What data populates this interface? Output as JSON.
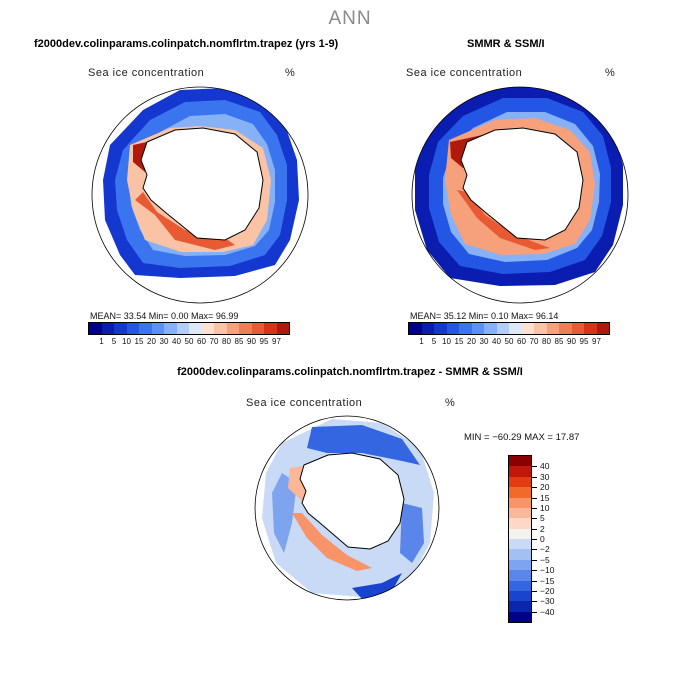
{
  "header": {
    "title": "ANN",
    "model_title": "f2000dev.colinparams.colinpatch.nomflrtm.trapez (yrs 1-9)",
    "obs_title": "SMMR & SSM/I",
    "diff_title": "f2000dev.colinparams.colinpatch.nomflrtm.trapez - SMMR & SSM/I"
  },
  "panels": {
    "model": {
      "field": "Sea ice concentration",
      "units": "%",
      "stats": "MEAN=   33.54   Min=     0.00   Max=   96.99"
    },
    "obs": {
      "field": "Sea ice concentration",
      "units": "%",
      "stats": "MEAN=   35.12   Min=     0.10   Max=   96.14"
    },
    "diff": {
      "field": "Sea ice concentration",
      "units": "%",
      "minmax": "MIN = −60.29  MAX =  17.87"
    }
  },
  "colorbars": {
    "horizontal": {
      "labels": [
        "1",
        "5",
        "10",
        "15",
        "20",
        "30",
        "40",
        "50",
        "60",
        "70",
        "80",
        "85",
        "90",
        "95",
        "97"
      ],
      "colors": [
        "#00008b",
        "#0a1db0",
        "#1437d0",
        "#2456e6",
        "#3a75ef",
        "#5a92f3",
        "#86b1f6",
        "#b3cff9",
        "#dde9fb",
        "#fde2d2",
        "#fbc3a6",
        "#f7a07c",
        "#f27c55",
        "#e85a33",
        "#d83418",
        "#b01a0c"
      ]
    },
    "vertical": {
      "labels": [
        "40",
        "30",
        "20",
        "15",
        "10",
        "5",
        "2",
        "0",
        "−2",
        "−5",
        "−10",
        "−15",
        "−20",
        "−30",
        "−40"
      ],
      "colors": [
        "#8b0000",
        "#c0170a",
        "#e23c12",
        "#f26a2a",
        "#f89468",
        "#fbb898",
        "#fdd8c6",
        "#f2f2ee",
        "#c9daf6",
        "#a3c0f3",
        "#7ea4ef",
        "#5a85ea",
        "#3366e0",
        "#1844cf",
        "#0a26ad",
        "#00008b"
      ]
    }
  }
}
